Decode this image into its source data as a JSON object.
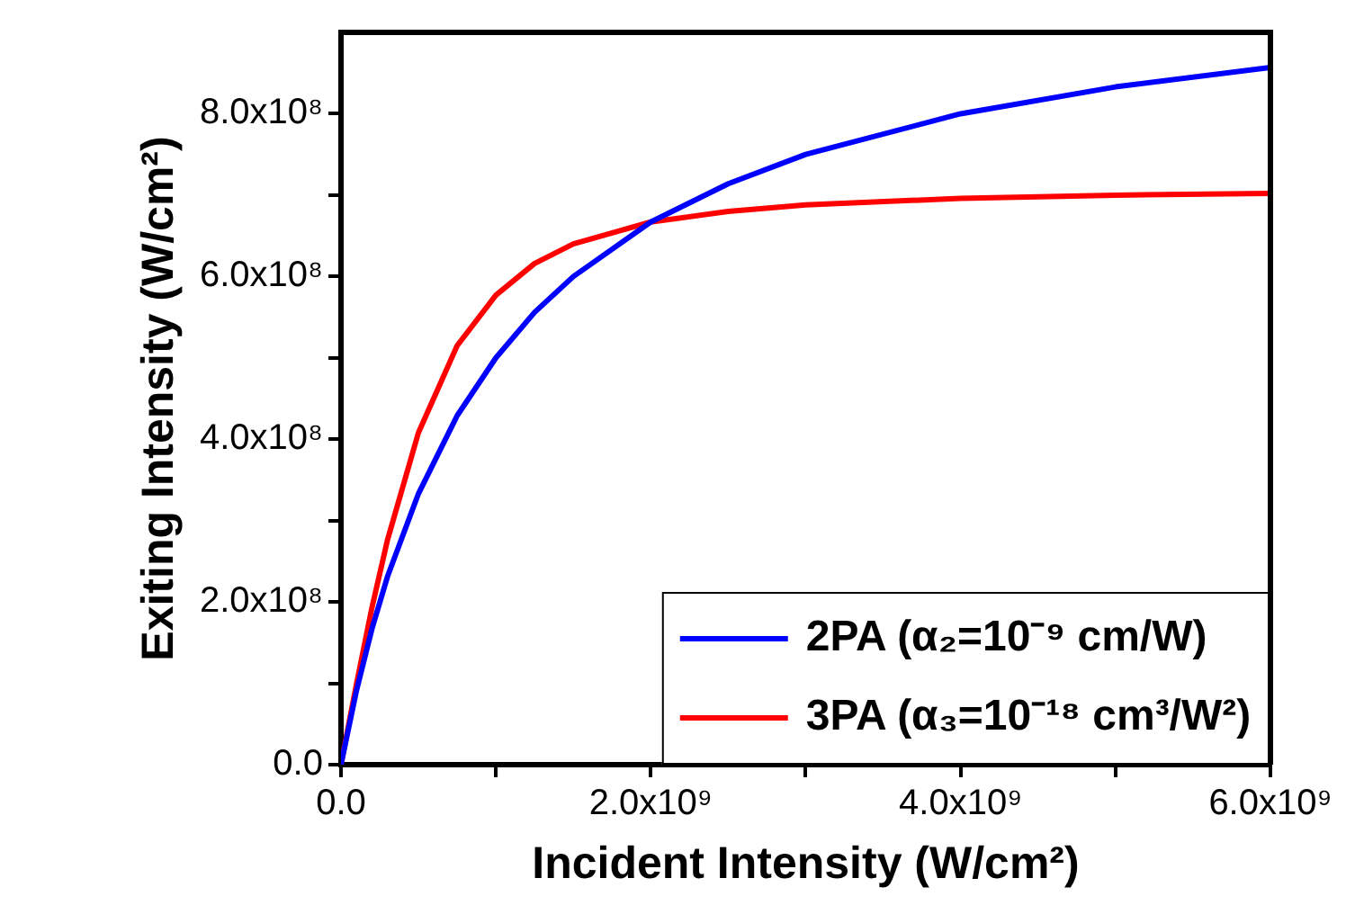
{
  "chart_data": {
    "type": "line",
    "xlabel": "Incident Intensity (W/cm²)",
    "ylabel": "Exiting Intensity (W/cm²)",
    "x": [
      0,
      100000000,
      200000000,
      300000000,
      500000000,
      750000000,
      1000000000,
      1250000000,
      1500000000,
      2000000000,
      2500000000,
      3000000000,
      4000000000,
      5000000000,
      6000000000
    ],
    "series": [
      {
        "name": "2PA (α₂=10⁻⁹ cm/W)",
        "color": "#0000ff",
        "values": [
          0,
          91000000,
          167000000,
          231000000,
          333000000,
          429000000,
          500000000,
          556000000,
          600000000,
          667000000,
          714000000,
          750000000,
          800000000,
          833000000,
          857000000
        ]
      },
      {
        "name": "3PA (α₃=10⁻¹⁸ cm³/W²)",
        "color": "#ff0000",
        "values": [
          0,
          99000000,
          193000000,
          276000000,
          408000000,
          515000000,
          577000000,
          616000000,
          640000000,
          667000000,
          680000000,
          688000000,
          696000000,
          700000000,
          702000000
        ]
      }
    ],
    "xlim": [
      0,
      6000000000
    ],
    "xticks": [
      {
        "value": 0,
        "label": "0.0"
      },
      {
        "value": 1000000000,
        "label": null
      },
      {
        "value": 2000000000,
        "label": "2.0x10⁹"
      },
      {
        "value": 3000000000,
        "label": null
      },
      {
        "value": 4000000000,
        "label": "4.0x10⁹"
      },
      {
        "value": 5000000000,
        "label": null
      },
      {
        "value": 6000000000,
        "label": "6.0x10⁹"
      }
    ],
    "ylim": [
      0,
      900000000
    ],
    "yticks": [
      {
        "value": 0,
        "label": "0.0"
      },
      {
        "value": 100000000,
        "label": null
      },
      {
        "value": 200000000,
        "label": "2.0x10⁸"
      },
      {
        "value": 300000000,
        "label": null
      },
      {
        "value": 400000000,
        "label": "4.0x10⁸"
      },
      {
        "value": 500000000,
        "label": null
      },
      {
        "value": 600000000,
        "label": "6.0x10⁸"
      },
      {
        "value": 700000000,
        "label": null
      },
      {
        "value": 800000000,
        "label": "8.0x10⁸"
      }
    ],
    "grid": false,
    "legend": "bottom right",
    "marker": "none",
    "line_style": "solid"
  }
}
